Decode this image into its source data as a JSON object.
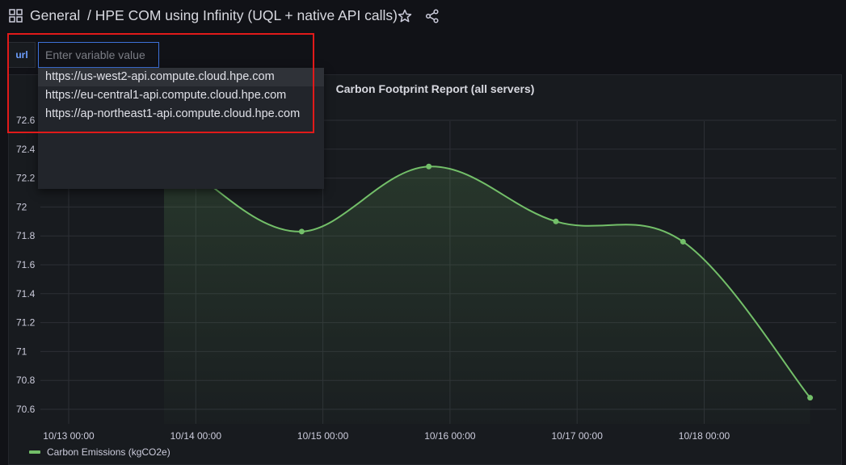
{
  "header": {
    "folder": "General",
    "title": "/ HPE COM using Infinity (UQL + native API calls)"
  },
  "variable": {
    "label": "url",
    "placeholder": "Enter variable value",
    "options": [
      "https://us-west2-api.compute.cloud.hpe.com",
      "https://eu-central1-api.compute.cloud.hpe.com",
      "https://ap-northeast1-api.compute.cloud.hpe.com"
    ]
  },
  "panel": {
    "title": "Carbon Footprint Report (all servers)"
  },
  "chart_data": {
    "type": "line",
    "title": "Carbon Footprint Report (all servers)",
    "x": [
      "10/13 00:00",
      "10/14 00:00",
      "10/15 00:00",
      "10/16 00:00",
      "10/17 00:00",
      "10/18 00:00"
    ],
    "xticks": [
      "10/13 00:00",
      "10/14 00:00",
      "10/15 00:00",
      "10/16 00:00",
      "10/17 00:00",
      "10/18 00:00"
    ],
    "ylim": [
      70.55,
      72.7
    ],
    "yticks": [
      "72.6",
      "72.4",
      "72.2",
      "72",
      "71.8",
      "71.6",
      "71.4",
      "71.2",
      "71",
      "70.8",
      "70.6"
    ],
    "series": [
      {
        "name": "Carbon Emissions (kgCO2e)",
        "color": "#73bf69",
        "points": [
          {
            "x": "10/14 00:00",
            "y": 72.22
          },
          {
            "x": "10/14 20:00",
            "y": 71.83
          },
          {
            "x": "10/15 20:00",
            "y": 72.28
          },
          {
            "x": "10/16 20:00",
            "y": 71.9
          },
          {
            "x": "10/17 20:00",
            "y": 71.76
          },
          {
            "x": "10/18 20:00",
            "y": 70.68
          }
        ]
      }
    ],
    "grid": true,
    "legend": "bottom-left"
  }
}
